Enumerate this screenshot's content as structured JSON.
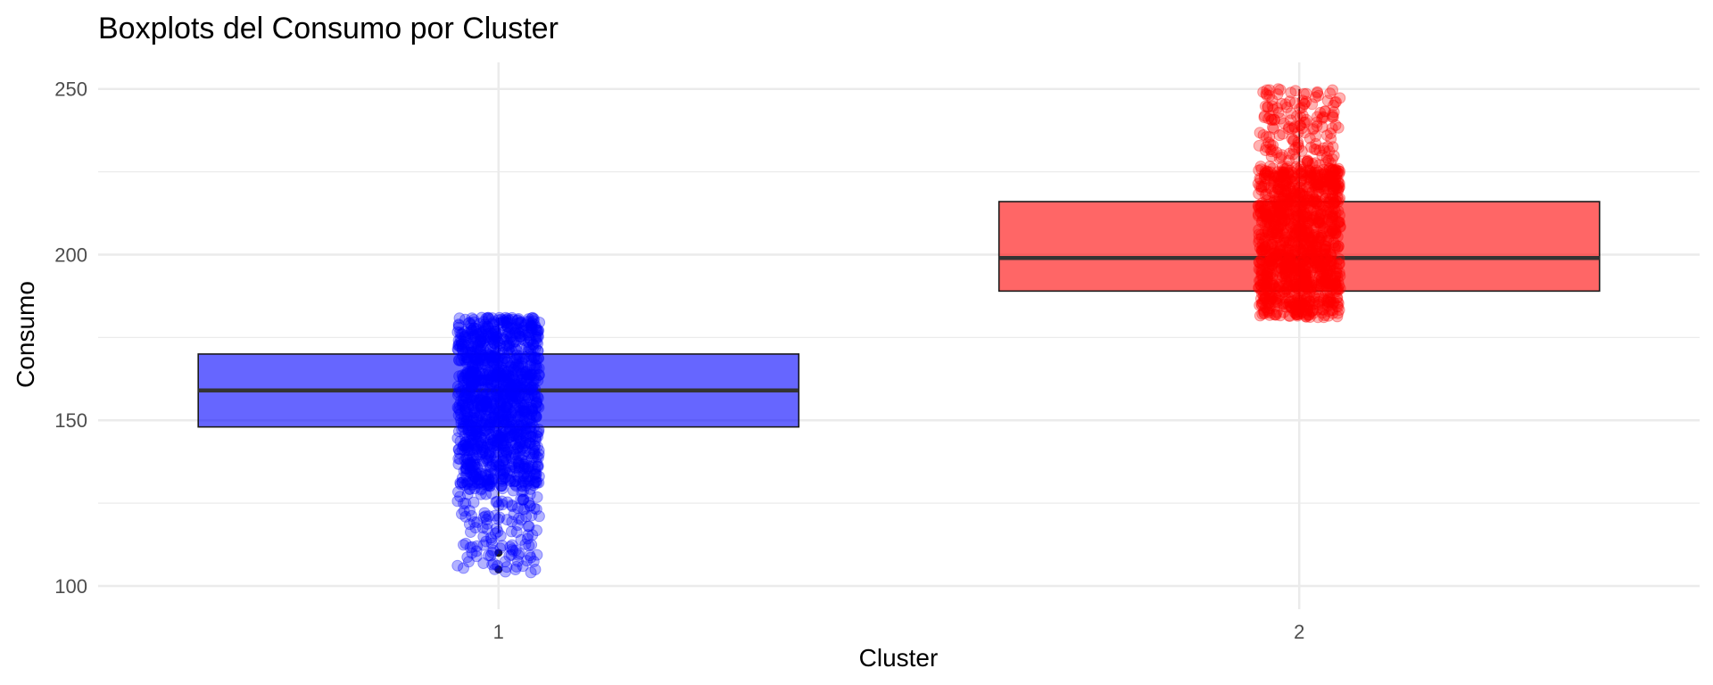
{
  "chart_data": {
    "type": "box",
    "title": "Boxplots del Consumo por Cluster",
    "xlabel": "Cluster",
    "ylabel": "Consumo",
    "categories": [
      "1",
      "2"
    ],
    "ylim": [
      93,
      258
    ],
    "yticks": [
      100,
      150,
      200,
      250
    ],
    "grid": true,
    "boxes": [
      {
        "category": "1",
        "color": "#0000FF",
        "fill_opacity": 0.6,
        "whisker_low": 116,
        "q1": 148,
        "median": 159,
        "q3": 170,
        "whisker_high": 181,
        "outliers": [
          110,
          105
        ],
        "jitter_range": [
          104,
          181
        ]
      },
      {
        "category": "2",
        "color": "#FF0000",
        "fill_opacity": 0.6,
        "whisker_low": 181,
        "q1": 189,
        "median": 199,
        "q3": 216,
        "whisker_high": 250,
        "outliers": [],
        "jitter_range": [
          181,
          250
        ]
      }
    ]
  }
}
